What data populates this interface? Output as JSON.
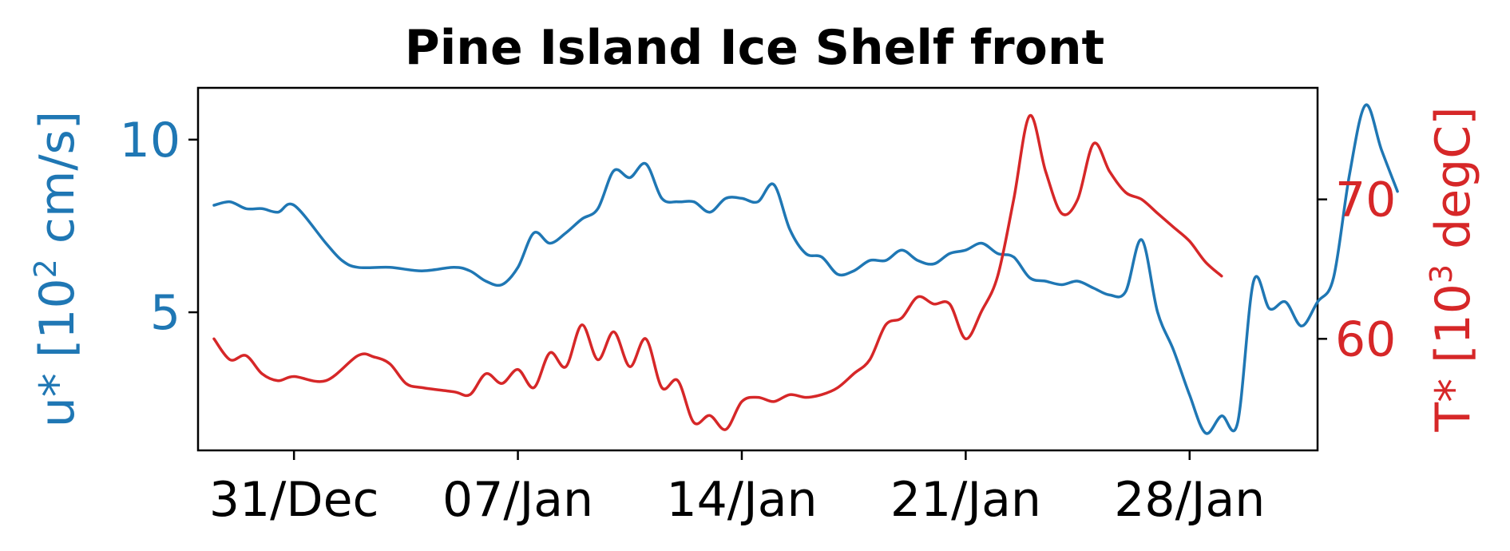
{
  "chart_data": {
    "type": "line",
    "title": "Pine Island Ice Shelf front",
    "xlabel": "",
    "x_tick_labels": [
      "31/Dec",
      "07/Jan",
      "14/Jan",
      "21/Jan",
      "28/Jan"
    ],
    "x_tick_dates": [
      "Dec 31",
      "Jan 7",
      "Jan 14",
      "Jan 21",
      "Jan 28"
    ],
    "x_range": [
      "Dec 28",
      "Feb 1"
    ],
    "left_axis": {
      "label": "u* [10",
      "label_sup": "2",
      "label_tail": " cm/s]",
      "color": "#1f77b4",
      "ylim": [
        1,
        11.5
      ],
      "ticks": [
        "5",
        "10"
      ]
    },
    "right_axis": {
      "label": "T* [10",
      "label_sup": "3",
      "label_tail": " degC]",
      "color": "#d62728",
      "ylim": [
        52,
        78
      ],
      "ticks": [
        "60",
        "70"
      ]
    },
    "series": [
      {
        "axis": "left",
        "color": "#1f77b4",
        "points": [
          [
            "Dec 28.5",
            8.1
          ],
          [
            "Dec 29",
            8.2
          ],
          [
            "Dec 29.5",
            8.0
          ],
          [
            "Dec 30",
            8.0
          ],
          [
            "Dec 30.5",
            7.9
          ],
          [
            "Dec 31",
            8.1
          ],
          [
            "Jan 1",
            7.0
          ],
          [
            "Jan 1.5",
            6.5
          ],
          [
            "Jan 2",
            6.3
          ],
          [
            "Jan 3",
            6.3
          ],
          [
            "Jan 4",
            6.2
          ],
          [
            "Jan 5",
            6.3
          ],
          [
            "Jan 5.5",
            6.2
          ],
          [
            "Jan 6",
            5.9
          ],
          [
            "Jan 6.5",
            5.8
          ],
          [
            "Jan 7",
            6.3
          ],
          [
            "Jan 7.5",
            7.3
          ],
          [
            "Jan 8",
            7.0
          ],
          [
            "Jan 8.5",
            7.3
          ],
          [
            "Jan 9",
            7.7
          ],
          [
            "Jan 9.5",
            8.0
          ],
          [
            "Jan 10",
            9.1
          ],
          [
            "Jan 10.5",
            8.9
          ],
          [
            "Jan 11",
            9.3
          ],
          [
            "Jan 11.5",
            8.3
          ],
          [
            "Jan 12",
            8.2
          ],
          [
            "Jan 12.5",
            8.2
          ],
          [
            "Jan 13",
            7.9
          ],
          [
            "Jan 13.5",
            8.3
          ],
          [
            "Jan 14",
            8.3
          ],
          [
            "Jan 14.5",
            8.2
          ],
          [
            "Jan 15",
            8.7
          ],
          [
            "Jan 15.5",
            7.4
          ],
          [
            "Jan 16",
            6.7
          ],
          [
            "Jan 16.5",
            6.6
          ],
          [
            "Jan 17",
            6.1
          ],
          [
            "Jan 17.5",
            6.2
          ],
          [
            "Jan 18",
            6.5
          ],
          [
            "Jan 18.5",
            6.5
          ],
          [
            "Jan 19",
            6.8
          ],
          [
            "Jan 19.5",
            6.5
          ],
          [
            "Jan 20",
            6.4
          ],
          [
            "Jan 20.5",
            6.7
          ],
          [
            "Jan 21",
            6.8
          ],
          [
            "Jan 21.5",
            7.0
          ],
          [
            "Jan 22",
            6.7
          ],
          [
            "Jan 22.5",
            6.6
          ],
          [
            "Jan 23",
            6.0
          ],
          [
            "Jan 23.5",
            5.9
          ],
          [
            "Jan 24",
            5.8
          ],
          [
            "Jan 24.5",
            5.9
          ],
          [
            "Jan 25",
            5.7
          ],
          [
            "Jan 25.5",
            5.5
          ],
          [
            "Jan 26",
            5.6
          ],
          [
            "Jan 26.5",
            7.1
          ],
          [
            "Jan 27",
            5.0
          ],
          [
            "Jan 27.5",
            3.9
          ],
          [
            "Jan 28",
            2.6
          ],
          [
            "Jan 28.5",
            1.5
          ],
          [
            "Jan 29",
            2.0
          ],
          [
            "Jan 29.5",
            1.8
          ],
          [
            "Jan 30",
            5.9
          ],
          [
            "Jan 30.5",
            5.1
          ],
          [
            "Jan 31",
            5.3
          ],
          [
            "Jan 31.5",
            4.6
          ],
          [
            "Feb 1",
            5.3
          ],
          [
            "Feb 1.5",
            6.0
          ],
          [
            "Feb 2",
            9.0
          ],
          [
            "Feb 2.5",
            11.0
          ],
          [
            "Feb 3",
            9.7
          ],
          [
            "Feb 3.5",
            8.5
          ]
        ]
      },
      {
        "axis": "right",
        "color": "#d62728",
        "points": [
          [
            "Dec 28.5",
            60.0
          ],
          [
            "Dec 29",
            58.5
          ],
          [
            "Dec 29.5",
            58.8
          ],
          [
            "Dec 30",
            57.5
          ],
          [
            "Dec 30.5",
            57.0
          ],
          [
            "Dec 31",
            57.3
          ],
          [
            "Jan 1",
            57.0
          ],
          [
            "Jan 2",
            58.8
          ],
          [
            "Jan 2.5",
            58.7
          ],
          [
            "Jan 3",
            58.2
          ],
          [
            "Jan 3.5",
            56.8
          ],
          [
            "Jan 4",
            56.5
          ],
          [
            "Jan 5",
            56.2
          ],
          [
            "Jan 5.5",
            56.0
          ],
          [
            "Jan 6",
            57.5
          ],
          [
            "Jan 6.5",
            56.8
          ],
          [
            "Jan 7",
            57.8
          ],
          [
            "Jan 7.5",
            56.5
          ],
          [
            "Jan 8",
            59.0
          ],
          [
            "Jan 8.5",
            58.0
          ],
          [
            "Jan 9",
            61.0
          ],
          [
            "Jan 9.5",
            58.5
          ],
          [
            "Jan 10",
            60.5
          ],
          [
            "Jan 10.5",
            58.0
          ],
          [
            "Jan 11",
            60.0
          ],
          [
            "Jan 11.5",
            56.5
          ],
          [
            "Jan 12",
            57.0
          ],
          [
            "Jan 12.5",
            54.0
          ],
          [
            "Jan 13",
            54.5
          ],
          [
            "Jan 13.5",
            53.5
          ],
          [
            "Jan 14",
            55.5
          ],
          [
            "Jan 14.5",
            55.8
          ],
          [
            "Jan 15",
            55.5
          ],
          [
            "Jan 15.5",
            56.0
          ],
          [
            "Jan 16",
            55.8
          ],
          [
            "Jan 16.5",
            56.0
          ],
          [
            "Jan 17",
            56.5
          ],
          [
            "Jan 17.5",
            57.5
          ],
          [
            "Jan 18",
            58.5
          ],
          [
            "Jan 18.5",
            61.0
          ],
          [
            "Jan 19",
            61.5
          ],
          [
            "Jan 19.5",
            63.0
          ],
          [
            "Jan 20",
            62.5
          ],
          [
            "Jan 20.5",
            62.5
          ],
          [
            "Jan 21",
            60.0
          ],
          [
            "Jan 21.5",
            62.0
          ],
          [
            "Jan 22",
            64.5
          ],
          [
            "Jan 22.5",
            70.0
          ],
          [
            "Jan 23",
            76.0
          ],
          [
            "Jan 23.5",
            72.0
          ],
          [
            "Jan 24",
            69.0
          ],
          [
            "Jan 24.5",
            70.0
          ],
          [
            "Jan 25",
            74.0
          ],
          [
            "Jan 25.5",
            72.0
          ],
          [
            "Jan 26",
            70.5
          ],
          [
            "Jan 26.5",
            70.0
          ],
          [
            "Jan 27",
            69.0
          ],
          [
            "Jan 27.5",
            68.0
          ],
          [
            "Jan 28",
            67.0
          ],
          [
            "Jan 28.5",
            65.5
          ],
          [
            "Jan 29",
            64.5
          ]
        ]
      }
    ],
    "grid": false,
    "legend": "none"
  }
}
